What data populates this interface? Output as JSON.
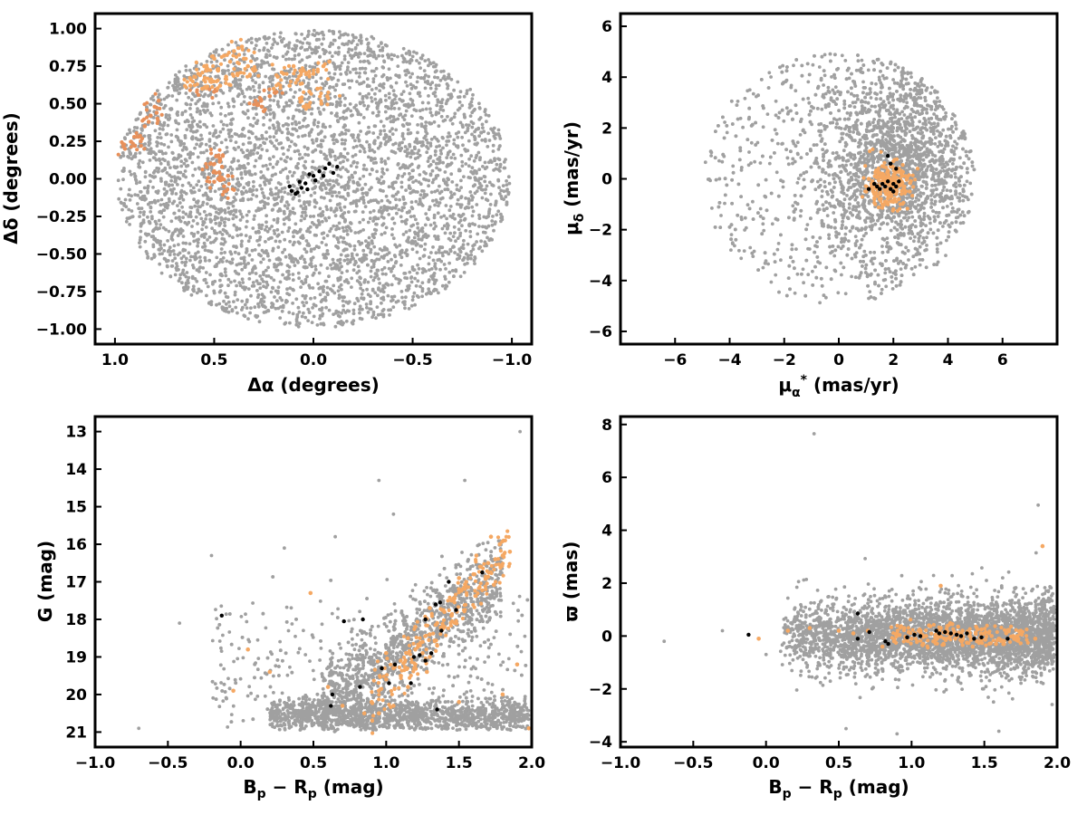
{
  "chart_data": [
    {
      "type": "scatter",
      "id": "sky",
      "xlabel": "Δα (degrees)",
      "ylabel": "Δδ (degrees)",
      "xlim": [
        1.1,
        -1.1
      ],
      "ylim": [
        -1.1,
        1.1
      ],
      "xticks": [
        1.0,
        0.5,
        0.0,
        -0.5,
        -1.0
      ],
      "xtick_labels": [
        "1.0",
        "0.5",
        "0.0",
        "−0.5",
        "−1.0"
      ],
      "yticks": [
        1.0,
        0.75,
        0.5,
        0.25,
        0.0,
        -0.25,
        -0.5,
        -0.75,
        -1.0
      ],
      "ytick_labels": [
        "1.00",
        "0.75",
        "0.50",
        "0.25",
        "0.00",
        "−0.25",
        "−0.50",
        "−0.75",
        "−1.00"
      ],
      "field": {
        "shape": "disk",
        "center": [
          0.0,
          0.0
        ],
        "radius_x": 1.0,
        "radius_y": 1.0
      },
      "members_orange": [
        [
          0.95,
          0.2
        ],
        [
          0.9,
          0.22
        ],
        [
          0.88,
          0.28
        ],
        [
          0.85,
          0.35
        ],
        [
          0.82,
          0.42
        ],
        [
          0.8,
          0.48
        ],
        [
          0.78,
          0.52
        ],
        [
          0.83,
          0.38
        ],
        [
          0.87,
          0.25
        ],
        [
          0.79,
          0.44
        ],
        [
          0.62,
          0.62
        ],
        [
          0.58,
          0.7
        ],
        [
          0.55,
          0.75
        ],
        [
          0.5,
          0.8
        ],
        [
          0.45,
          0.82
        ],
        [
          0.4,
          0.85
        ],
        [
          0.42,
          0.78
        ],
        [
          0.48,
          0.72
        ],
        [
          0.52,
          0.65
        ],
        [
          0.56,
          0.6
        ],
        [
          0.6,
          0.68
        ],
        [
          0.47,
          0.62
        ],
        [
          0.38,
          0.7
        ],
        [
          0.35,
          0.8
        ],
        [
          0.33,
          0.75
        ],
        [
          0.3,
          0.72
        ],
        [
          0.44,
          0.68
        ],
        [
          0.5,
          0.58
        ],
        [
          0.54,
          0.72
        ],
        [
          0.36,
          0.88
        ],
        [
          0.28,
          0.5
        ],
        [
          0.25,
          0.45
        ],
        [
          0.22,
          0.55
        ],
        [
          0.2,
          0.6
        ],
        [
          0.15,
          0.7
        ],
        [
          0.1,
          0.75
        ],
        [
          0.05,
          0.72
        ],
        [
          0.0,
          0.7
        ],
        [
          -0.05,
          0.75
        ],
        [
          -0.08,
          0.78
        ],
        [
          0.12,
          0.62
        ],
        [
          0.08,
          0.66
        ],
        [
          0.02,
          0.58
        ],
        [
          -0.02,
          0.6
        ],
        [
          0.18,
          0.68
        ],
        [
          -0.04,
          0.5
        ],
        [
          0.03,
          0.48
        ],
        [
          0.06,
          0.52
        ],
        [
          -0.07,
          0.55
        ],
        [
          0.26,
          0.48
        ],
        [
          0.52,
          0.1
        ],
        [
          0.5,
          0.05
        ],
        [
          0.48,
          0.0
        ],
        [
          0.45,
          -0.05
        ],
        [
          0.47,
          0.12
        ],
        [
          0.43,
          0.02
        ],
        [
          0.5,
          -0.02
        ],
        [
          0.46,
          0.08
        ],
        [
          0.44,
          -0.08
        ],
        [
          0.49,
          0.15
        ]
      ],
      "members_black": [
        [
          -0.08,
          0.1
        ],
        [
          -0.06,
          0.07
        ],
        [
          -0.03,
          0.05
        ],
        [
          0.0,
          0.02
        ],
        [
          0.02,
          0.03
        ],
        [
          -0.01,
          -0.01
        ],
        [
          0.04,
          -0.03
        ],
        [
          0.06,
          -0.06
        ],
        [
          0.08,
          -0.09
        ],
        [
          0.11,
          -0.08
        ],
        [
          0.12,
          -0.05
        ],
        [
          0.03,
          -0.07
        ],
        [
          0.07,
          -0.02
        ],
        [
          -0.05,
          0.02
        ],
        [
          -0.1,
          0.04
        ],
        [
          -0.12,
          0.08
        ],
        [
          0.09,
          -0.1
        ]
      ]
    },
    {
      "type": "scatter",
      "id": "propermotion",
      "xlabel": "μα* (mas/yr)",
      "ylabel": "μδ (mas/yr)",
      "xlim": [
        -8,
        8
      ],
      "ylim": [
        -6.5,
        6.5
      ],
      "xticks": [
        -6,
        -4,
        -2,
        0,
        2,
        4,
        6
      ],
      "xtick_labels": [
        "−6",
        "−4",
        "−2",
        "0",
        "2",
        "4",
        "6"
      ],
      "yticks": [
        6,
        4,
        2,
        0,
        -2,
        -4,
        -6
      ],
      "ytick_labels": [
        "6",
        "4",
        "2",
        "0",
        "−2",
        "−4",
        "−6"
      ],
      "field": {
        "shape": "disk",
        "center": [
          0.0,
          0.0
        ],
        "radius_x": 5.0,
        "radius_y": 5.0
      },
      "members_orange": [
        [
          1.5,
          -0.3
        ],
        [
          1.7,
          -0.5
        ],
        [
          1.9,
          -0.2
        ],
        [
          2.1,
          -0.4
        ],
        [
          2.3,
          -0.1
        ],
        [
          1.4,
          0.1
        ],
        [
          1.6,
          0.2
        ],
        [
          1.8,
          0.3
        ],
        [
          2.0,
          0.1
        ],
        [
          2.2,
          0.4
        ],
        [
          1.3,
          -0.6
        ],
        [
          1.5,
          -0.8
        ],
        [
          1.7,
          -0.9
        ],
        [
          1.9,
          -0.7
        ],
        [
          2.1,
          -0.6
        ],
        [
          2.4,
          -0.3
        ],
        [
          2.5,
          0.0
        ],
        [
          1.2,
          -0.2
        ],
        [
          1.1,
          0.0
        ],
        [
          1.6,
          0.5
        ],
        [
          1.8,
          -1.0
        ],
        [
          2.0,
          -0.9
        ],
        [
          2.2,
          -0.8
        ],
        [
          1.4,
          -0.4
        ],
        [
          1.6,
          -0.1
        ],
        [
          1.9,
          0.5
        ],
        [
          2.3,
          0.3
        ],
        [
          2.6,
          -0.5
        ],
        [
          1.0,
          -0.5
        ],
        [
          2.0,
          -1.2
        ]
      ],
      "members_black": [
        [
          1.8,
          0.9
        ],
        [
          1.9,
          0.6
        ],
        [
          2.1,
          0.4
        ],
        [
          1.6,
          -0.2
        ],
        [
          1.7,
          -0.3
        ],
        [
          1.9,
          -0.4
        ],
        [
          2.0,
          -0.2
        ],
        [
          2.1,
          -0.3
        ],
        [
          1.4,
          -0.3
        ],
        [
          1.3,
          -0.2
        ],
        [
          1.1,
          -0.4
        ],
        [
          2.2,
          -0.1
        ],
        [
          1.8,
          -0.1
        ],
        [
          1.5,
          -0.4
        ],
        [
          2.0,
          -0.5
        ]
      ]
    },
    {
      "type": "scatter",
      "id": "cmd",
      "xlabel": "Bp − Rp (mag)",
      "ylabel": "G (mag)",
      "xlim": [
        -1.0,
        2.0
      ],
      "ylim": [
        21.4,
        12.6
      ],
      "xticks": [
        -1.0,
        -0.5,
        0.0,
        0.5,
        1.0,
        1.5,
        2.0
      ],
      "xtick_labels": [
        "−1.0",
        "−0.5",
        "0.0",
        "0.5",
        "1.0",
        "1.5",
        "2.0"
      ],
      "yticks": [
        21,
        20,
        19,
        18,
        17,
        16,
        15,
        14,
        13
      ],
      "ytick_labels": [
        "21",
        "20",
        "19",
        "18",
        "17",
        "16",
        "15",
        "14",
        "13"
      ],
      "members_orange": [
        [
          0.9,
          20.2
        ],
        [
          0.95,
          19.9
        ],
        [
          1.0,
          19.6
        ],
        [
          1.05,
          19.3
        ],
        [
          1.1,
          19.1
        ],
        [
          1.15,
          18.9
        ],
        [
          1.2,
          18.8
        ],
        [
          1.25,
          18.6
        ],
        [
          1.3,
          18.4
        ],
        [
          1.35,
          18.1
        ],
        [
          1.4,
          17.8
        ],
        [
          1.45,
          17.5
        ],
        [
          1.5,
          17.2
        ],
        [
          1.55,
          17.0
        ],
        [
          1.6,
          16.8
        ],
        [
          1.65,
          16.6
        ],
        [
          1.7,
          16.5
        ],
        [
          1.75,
          16.4
        ],
        [
          1.8,
          16.3
        ],
        [
          1.85,
          16.2
        ],
        [
          1.1,
          19.5
        ],
        [
          1.2,
          19.2
        ],
        [
          1.3,
          19.0
        ],
        [
          1.15,
          18.5
        ],
        [
          1.25,
          18.9
        ],
        [
          1.35,
          18.7
        ],
        [
          0.85,
          20.5
        ],
        [
          0.7,
          20.3
        ],
        [
          0.6,
          19.8
        ],
        [
          1.0,
          18.9
        ],
        [
          1.4,
          18.2
        ],
        [
          1.45,
          17.9
        ],
        [
          1.3,
          17.7
        ],
        [
          1.2,
          18.2
        ],
        [
          1.5,
          16.9
        ],
        [
          1.62,
          16.3
        ],
        [
          1.72,
          15.8
        ],
        [
          1.78,
          16.0
        ],
        [
          0.2,
          19.4
        ],
        [
          0.05,
          18.8
        ],
        [
          -0.05,
          19.9
        ],
        [
          0.48,
          17.3
        ],
        [
          0.95,
          20.5
        ],
        [
          1.05,
          20.3
        ],
        [
          1.5,
          20.2
        ],
        [
          1.8,
          20.0
        ],
        [
          1.9,
          19.2
        ],
        [
          1.98,
          20.9
        ],
        [
          1.15,
          19.8
        ],
        [
          1.28,
          19.4
        ]
      ],
      "members_black": [
        [
          0.62,
          20.3
        ],
        [
          0.82,
          19.8
        ],
        [
          1.17,
          19.7
        ],
        [
          1.35,
          20.4
        ],
        [
          1.02,
          19.7
        ],
        [
          0.97,
          19.3
        ],
        [
          1.19,
          19.0
        ],
        [
          1.23,
          18.95
        ],
        [
          1.27,
          19.1
        ],
        [
          1.31,
          18.9
        ],
        [
          0.71,
          18.05
        ],
        [
          0.84,
          18.0
        ],
        [
          1.27,
          18.0
        ],
        [
          1.38,
          18.3
        ],
        [
          1.48,
          17.75
        ],
        [
          1.34,
          17.6
        ],
        [
          1.37,
          17.55
        ],
        [
          1.43,
          17.0
        ],
        [
          1.66,
          16.75
        ],
        [
          -0.13,
          17.9
        ],
        [
          1.06,
          19.2
        ],
        [
          0.63,
          20.0
        ]
      ]
    },
    {
      "type": "scatter",
      "id": "parallax",
      "xlabel": "Bp − Rp (mag)",
      "ylabel": "ϖ (mas)",
      "xlim": [
        -1.0,
        2.0
      ],
      "ylim": [
        -4.2,
        8.3
      ],
      "xticks": [
        -1.0,
        -0.5,
        0.0,
        0.5,
        1.0,
        1.5,
        2.0
      ],
      "xtick_labels": [
        "−1.0",
        "−0.5",
        "0.0",
        "0.5",
        "1.0",
        "1.5",
        "2.0"
      ],
      "yticks": [
        8,
        6,
        4,
        2,
        0,
        -2,
        -4
      ],
      "ytick_labels": [
        "8",
        "6",
        "4",
        "2",
        "0",
        "−2",
        "−4"
      ],
      "members_orange": [
        [
          0.9,
          0.1
        ],
        [
          1.0,
          -0.1
        ],
        [
          1.05,
          0.2
        ],
        [
          1.1,
          0.0
        ],
        [
          1.15,
          -0.2
        ],
        [
          1.2,
          0.3
        ],
        [
          1.25,
          0.1
        ],
        [
          1.3,
          -0.1
        ],
        [
          1.35,
          0.2
        ],
        [
          1.4,
          0.0
        ],
        [
          1.45,
          -0.2
        ],
        [
          1.5,
          0.1
        ],
        [
          1.55,
          0.0
        ],
        [
          1.6,
          -0.1
        ],
        [
          1.65,
          0.1
        ],
        [
          1.7,
          0.0
        ],
        [
          0.95,
          0.3
        ],
        [
          1.12,
          0.4
        ],
        [
          1.22,
          -0.3
        ],
        [
          1.32,
          0.35
        ],
        [
          0.8,
          -0.4
        ],
        [
          0.7,
          0.2
        ],
        [
          0.6,
          0.1
        ],
        [
          0.5,
          0.2
        ],
        [
          1.9,
          3.4
        ],
        [
          1.2,
          1.9
        ],
        [
          0.3,
          0.3
        ],
        [
          1.42,
          -0.4
        ],
        [
          1.08,
          -0.3
        ],
        [
          0.98,
          0.15
        ],
        [
          1.28,
          0.45
        ],
        [
          1.18,
          -0.05
        ],
        [
          1.38,
          -0.25
        ],
        [
          1.48,
          0.25
        ],
        [
          1.58,
          -0.3
        ],
        [
          1.75,
          0.2
        ],
        [
          1.85,
          -0.1
        ],
        [
          -0.05,
          -0.1
        ],
        [
          0.15,
          0.2
        ],
        [
          0.88,
          -0.2
        ]
      ],
      "members_black": [
        [
          -0.12,
          0.05
        ],
        [
          0.63,
          0.85
        ],
        [
          0.63,
          -0.1
        ],
        [
          0.71,
          0.15
        ],
        [
          0.82,
          -0.2
        ],
        [
          0.84,
          -0.3
        ],
        [
          0.97,
          -0.05
        ],
        [
          1.02,
          0.05
        ],
        [
          1.17,
          0.2
        ],
        [
          1.19,
          0.1
        ],
        [
          1.23,
          0.15
        ],
        [
          1.27,
          0.1
        ],
        [
          1.31,
          0.05
        ],
        [
          1.34,
          0.0
        ],
        [
          1.38,
          0.1
        ],
        [
          1.43,
          -0.1
        ],
        [
          1.48,
          -0.05
        ],
        [
          1.66,
          -0.1
        ],
        [
          1.06,
          0.0
        ]
      ]
    }
  ],
  "colors": {
    "field": "#a0a0a0",
    "member_orange": "#f5a863",
    "member_orange_dark": "#e8905a",
    "member_black": "#000000",
    "frame": "#000000"
  }
}
